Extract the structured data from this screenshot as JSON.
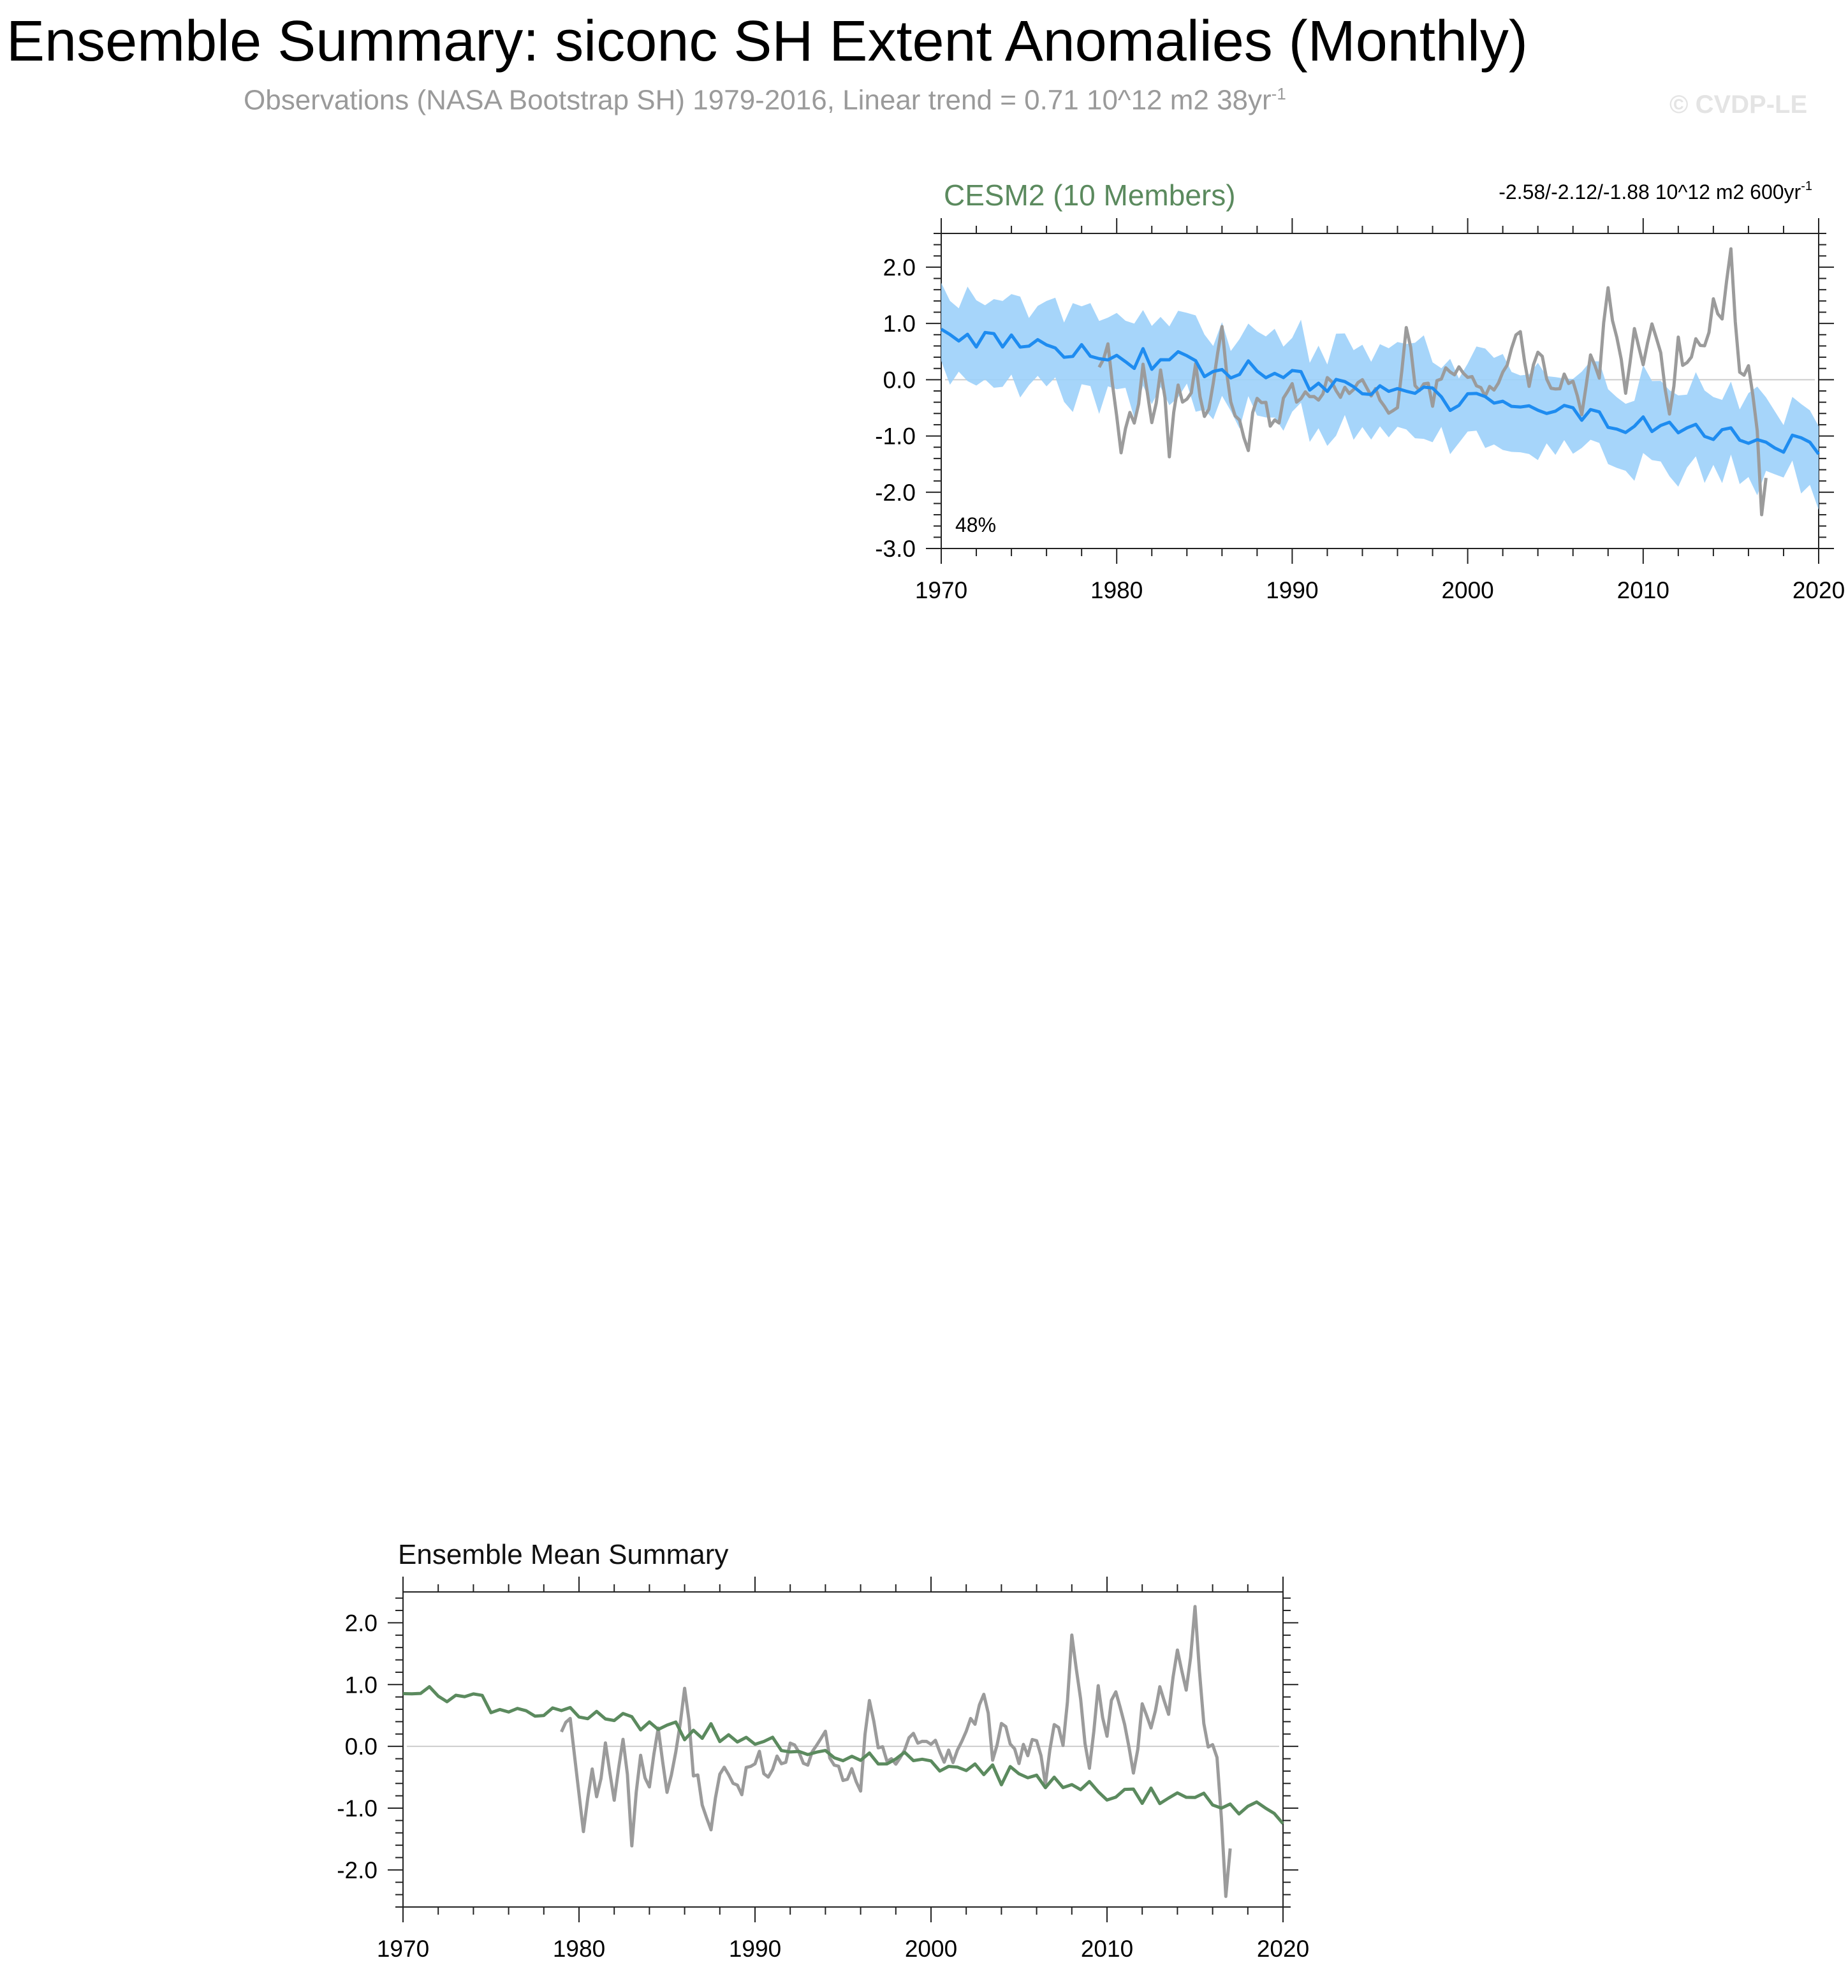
{
  "page": {
    "title": "Ensemble Summary: siconc SH Extent Anomalies (Monthly)",
    "subtitle": "Observations (NASA Bootstrap SH) 1979-2016, Linear trend = 0.71 10^12 m2 38yr",
    "subtitle_exponent": "-1",
    "watermark": "© CVDP-LE"
  },
  "colors": {
    "observations": "#9b9b9b",
    "ensemble_mean_blue": "#1e8cf0",
    "ensemble_spread": "#9cd0fa",
    "ensemble_mean_green": "#5b8a5e",
    "panel_title_green": "#5b8a5e",
    "zero_line": "#cccccc"
  },
  "chart_data": [
    {
      "id": "cesm2",
      "type": "line",
      "title": "CESM2 (10 Members)",
      "trend_label": "-2.58/-2.12/-1.88 10^12 m2 600yr",
      "trend_exponent": "-1",
      "percent_label": "48%",
      "xlim": [
        1970,
        2020
      ],
      "ylim": [
        -3.0,
        2.6
      ],
      "x_ticks": [
        "1970",
        "1980",
        "1990",
        "2000",
        "2010",
        "2020"
      ],
      "y_ticks": [
        "2.0",
        "1.0",
        "0.0",
        "-1.0",
        "-2.0",
        "-3.0"
      ],
      "series": [
        {
          "role": "ensemble-mean",
          "trend": {
            "start": 0.85,
            "end": -1.2,
            "noise": 0.18
          }
        },
        {
          "role": "ensemble-spread",
          "spread": {
            "half_width": 0.45,
            "noise": 0.25
          }
        },
        {
          "role": "observations",
          "x_range": [
            1979,
            2017
          ]
        }
      ]
    },
    {
      "id": "ensemble-mean",
      "type": "line",
      "title": "Ensemble Mean Summary",
      "xlim": [
        1970,
        2020
      ],
      "ylim": [
        -2.6,
        2.5
      ],
      "x_ticks": [
        "1970",
        "1980",
        "1990",
        "2000",
        "2010",
        "2020"
      ],
      "y_ticks": [
        "2.0",
        "1.0",
        "0.0",
        "-1.0",
        "-2.0"
      ],
      "series": [
        {
          "role": "ensemble-mean",
          "trend": {
            "start": 0.9,
            "end": -1.1,
            "noise": 0.14
          }
        },
        {
          "role": "observations",
          "x_range": [
            1979,
            2017
          ]
        }
      ]
    }
  ],
  "observations_anchors": [
    [
      1979.0,
      0.3
    ],
    [
      1979.5,
      0.6
    ],
    [
      1980.0,
      -0.6
    ],
    [
      1980.3,
      -1.5
    ],
    [
      1980.6,
      -0.3
    ],
    [
      1981.0,
      -0.9
    ],
    [
      1981.5,
      0.2
    ],
    [
      1982.0,
      -0.7
    ],
    [
      1982.6,
      0.3
    ],
    [
      1983.0,
      -1.5
    ],
    [
      1983.4,
      -0.2
    ],
    [
      1984.0,
      -0.5
    ],
    [
      1984.5,
      0.2
    ],
    [
      1985.0,
      -0.7
    ],
    [
      1985.5,
      0.0
    ],
    [
      1986.0,
      0.9
    ],
    [
      1986.5,
      -0.4
    ],
    [
      1987.0,
      -0.8
    ],
    [
      1987.5,
      -1.2
    ],
    [
      1988.0,
      -0.3
    ],
    [
      1989.0,
      -0.8
    ],
    [
      1990.0,
      -0.2
    ],
    [
      1991.0,
      -0.4
    ],
    [
      1992.0,
      -0.1
    ],
    [
      1993.0,
      -0.3
    ],
    [
      1994.0,
      0.1
    ],
    [
      1995.0,
      -0.4
    ],
    [
      1996.0,
      -0.6
    ],
    [
      1996.5,
      0.9
    ],
    [
      1997.0,
      0.0
    ],
    [
      1998.0,
      -0.3
    ],
    [
      1999.0,
      0.2
    ],
    [
      2000.0,
      0.0
    ],
    [
      2001.0,
      -0.2
    ],
    [
      2002.0,
      0.1
    ],
    [
      2003.0,
      0.9
    ],
    [
      2003.5,
      -0.1
    ],
    [
      2004.0,
      0.4
    ],
    [
      2005.0,
      -0.2
    ],
    [
      2006.0,
      0.1
    ],
    [
      2006.5,
      -0.6
    ],
    [
      2007.0,
      0.5
    ],
    [
      2007.5,
      0.0
    ],
    [
      2008.0,
      1.7
    ],
    [
      2008.5,
      0.6
    ],
    [
      2009.0,
      -0.2
    ],
    [
      2009.5,
      0.9
    ],
    [
      2010.0,
      0.3
    ],
    [
      2010.5,
      1.0
    ],
    [
      2011.0,
      0.4
    ],
    [
      2011.5,
      -0.6
    ],
    [
      2012.0,
      0.6
    ],
    [
      2012.5,
      0.2
    ],
    [
      2013.0,
      0.9
    ],
    [
      2013.5,
      0.6
    ],
    [
      2014.0,
      1.4
    ],
    [
      2014.5,
      1.0
    ],
    [
      2015.0,
      2.2
    ],
    [
      2015.3,
      0.9
    ],
    [
      2015.6,
      -0.1
    ],
    [
      2016.0,
      0.2
    ],
    [
      2016.4,
      -0.3
    ],
    [
      2016.7,
      -2.4
    ],
    [
      2017.0,
      -1.6
    ]
  ]
}
